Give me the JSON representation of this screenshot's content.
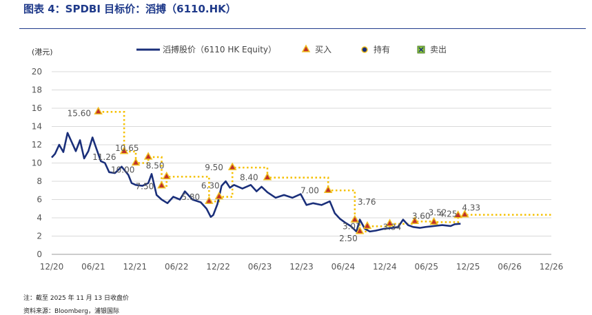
{
  "header": {
    "title": "图表 4：SPDBI 目标价：滔搏（6110.HK）"
  },
  "footer": {
    "note": "注：截至 2025 年 11 月 13 日收盘价",
    "source": "资料来源：Bloomberg，浦银国际"
  },
  "colors": {
    "price_line": "#1a2f7a",
    "target_line": "#f5c000",
    "buy_marker": "#c0302a",
    "buy_marker_edge": "#f0c020",
    "grid": "#d9d9d9",
    "rule": "#1f3a8a"
  },
  "chart_data": {
    "type": "line",
    "ylabel": "(港元)",
    "ylim": [
      0,
      20
    ],
    "yticks": [
      "0",
      "2",
      "4",
      "6",
      "8",
      "10",
      "12",
      "14",
      "16",
      "18",
      "20"
    ],
    "x_tick_labels": [
      "12/20",
      "06/21",
      "12/21",
      "06/22",
      "12/22",
      "06/23",
      "12/23",
      "06/24",
      "12/24",
      "06/25",
      "12/25",
      "06/26",
      "12/26"
    ],
    "x_range": [
      "2020-12",
      "2026-12"
    ],
    "legend": {
      "placement": "top",
      "entries": [
        {
          "name": "滔搏股价（6110 HK Equity）",
          "kind": "line",
          "icon": "line-icon"
        },
        {
          "name": "买入",
          "kind": "buy",
          "icon": "triangle-icon"
        },
        {
          "name": "持有",
          "kind": "hold",
          "icon": "circle-icon"
        },
        {
          "name": "卖出",
          "kind": "sell",
          "icon": "cross-box-icon"
        }
      ]
    },
    "series": [
      {
        "name": "滔搏股价（6110 HK Equity）",
        "points": [
          [
            2020.96,
            10.6
          ],
          [
            2021.0,
            11.0
          ],
          [
            2021.05,
            12.0
          ],
          [
            2021.1,
            11.2
          ],
          [
            2021.15,
            13.3
          ],
          [
            2021.2,
            12.3
          ],
          [
            2021.25,
            11.3
          ],
          [
            2021.3,
            12.5
          ],
          [
            2021.35,
            10.5
          ],
          [
            2021.4,
            11.3
          ],
          [
            2021.45,
            12.8
          ],
          [
            2021.5,
            11.5
          ],
          [
            2021.55,
            10.2
          ],
          [
            2021.6,
            10.0
          ],
          [
            2021.65,
            9.0
          ],
          [
            2021.72,
            8.9
          ],
          [
            2021.8,
            9.6
          ],
          [
            2021.88,
            8.7
          ],
          [
            2021.92,
            7.8
          ],
          [
            2021.97,
            7.6
          ],
          [
            2022.05,
            7.5
          ],
          [
            2022.12,
            7.8
          ],
          [
            2022.16,
            8.8
          ],
          [
            2022.22,
            6.5
          ],
          [
            2022.28,
            6.0
          ],
          [
            2022.35,
            5.6
          ],
          [
            2022.42,
            6.3
          ],
          [
            2022.5,
            6.0
          ],
          [
            2022.56,
            6.9
          ],
          [
            2022.65,
            6.0
          ],
          [
            2022.75,
            5.7
          ],
          [
            2022.82,
            5.0
          ],
          [
            2022.87,
            4.1
          ],
          [
            2022.9,
            4.3
          ],
          [
            2022.95,
            5.5
          ],
          [
            2023.0,
            7.5
          ],
          [
            2023.05,
            8.0
          ],
          [
            2023.1,
            7.3
          ],
          [
            2023.15,
            7.6
          ],
          [
            2023.25,
            7.2
          ],
          [
            2023.35,
            7.6
          ],
          [
            2023.42,
            6.9
          ],
          [
            2023.48,
            7.4
          ],
          [
            2023.55,
            6.8
          ],
          [
            2023.65,
            6.2
          ],
          [
            2023.75,
            6.5
          ],
          [
            2023.85,
            6.2
          ],
          [
            2023.95,
            6.6
          ],
          [
            2024.02,
            5.4
          ],
          [
            2024.1,
            5.6
          ],
          [
            2024.2,
            5.4
          ],
          [
            2024.3,
            5.8
          ],
          [
            2024.36,
            4.5
          ],
          [
            2024.42,
            3.9
          ],
          [
            2024.48,
            3.5
          ],
          [
            2024.55,
            3.1
          ],
          [
            2024.62,
            2.5
          ],
          [
            2024.66,
            3.8
          ],
          [
            2024.72,
            2.8
          ],
          [
            2024.78,
            2.5
          ],
          [
            2024.85,
            2.6
          ],
          [
            2024.95,
            2.8
          ],
          [
            2025.05,
            2.9
          ],
          [
            2025.12,
            3.0
          ],
          [
            2025.18,
            3.8
          ],
          [
            2025.24,
            3.2
          ],
          [
            2025.3,
            3.0
          ],
          [
            2025.38,
            2.9
          ],
          [
            2025.45,
            3.0
          ],
          [
            2025.55,
            3.1
          ],
          [
            2025.65,
            3.2
          ],
          [
            2025.75,
            3.1
          ],
          [
            2025.8,
            3.3
          ],
          [
            2025.87,
            3.35
          ]
        ]
      }
    ],
    "target_prices": [
      {
        "x": 2021.52,
        "value": 15.6,
        "label": "15.60"
      },
      {
        "x": 2021.83,
        "value": 11.26,
        "label": "11.26"
      },
      {
        "x": 2021.97,
        "value": 10.0,
        "label": "10.00"
      },
      {
        "x": 2022.12,
        "value": 10.65,
        "label": "10.65"
      },
      {
        "x": 2022.28,
        "value": 7.5,
        "label": "7.50"
      },
      {
        "x": 2022.34,
        "value": 8.5,
        "label": "8.50"
      },
      {
        "x": 2022.85,
        "value": 5.8,
        "label": "5.80"
      },
      {
        "x": 2022.97,
        "value": 6.3,
        "label": "6.30"
      },
      {
        "x": 2023.13,
        "value": 9.5,
        "label": "9.50"
      },
      {
        "x": 2023.55,
        "value": 8.4,
        "label": "8.40"
      },
      {
        "x": 2024.28,
        "value": 7.0,
        "label": "7.00"
      },
      {
        "x": 2024.6,
        "value": 3.76,
        "label": "3.76"
      },
      {
        "x": 2024.66,
        "value": 2.5,
        "label": "2.50"
      },
      {
        "x": 2024.75,
        "value": 3.07,
        "label": "3.07"
      },
      {
        "x": 2025.02,
        "value": 3.34,
        "label": "3.34"
      },
      {
        "x": 2025.32,
        "value": 3.6,
        "label": "3.60"
      },
      {
        "x": 2025.55,
        "value": 3.52,
        "label": "3.52"
      },
      {
        "x": 2025.84,
        "value": 4.25,
        "label": "4.25"
      },
      {
        "x": 2025.92,
        "value": 4.33,
        "label": "4.33"
      }
    ],
    "target_extends_to": 2026.96
  }
}
